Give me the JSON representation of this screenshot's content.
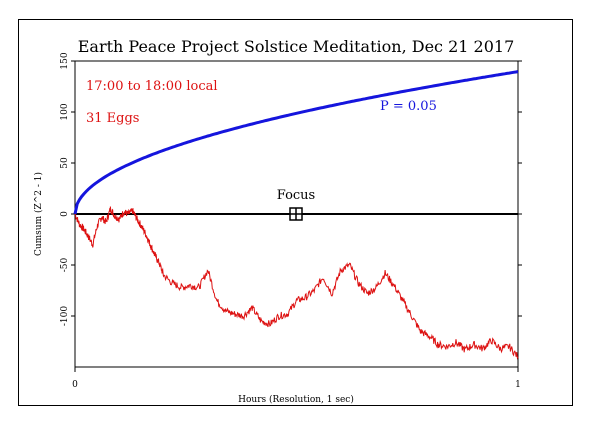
{
  "chart_data": {
    "type": "line",
    "title": "Earth Peace Project Solstice Meditation, Dec 21 2017",
    "xlabel": "Hours (Resolution, 1 sec)",
    "ylabel": "Cumsum (Z^2 - 1)",
    "xlim": [
      0,
      1
    ],
    "ylim": [
      -150,
      150
    ],
    "x_ticks": [
      "0",
      "1"
    ],
    "y_ticks": [
      "150",
      "100",
      "50",
      "0",
      "-50",
      "-100"
    ],
    "y_tick_values": [
      150,
      100,
      50,
      0,
      -50,
      -100
    ],
    "annotations": {
      "time_window": "17:00 to 18:00 local",
      "eggs": "31 Eggs",
      "p_label": "P = 0.05",
      "focus_label": "Focus"
    },
    "focus_point": {
      "x": 0.5,
      "y": 0
    },
    "colors": {
      "cumsum": "#dd1111",
      "p_curve": "#1515dd",
      "axis": "#000000",
      "baseline": "#000000"
    },
    "series": [
      {
        "label": "P = 0.05",
        "color": "#1515dd",
        "line_width": 3,
        "formula": "1.645*sqrt(2*t*3600)",
        "x": [
          0,
          0.01,
          0.02,
          0.04,
          0.06,
          0.1,
          0.15,
          0.2,
          0.3,
          0.4,
          0.5,
          0.6,
          0.7,
          0.8,
          0.9,
          1.0
        ],
        "y": [
          0,
          14,
          20,
          28,
          34,
          44,
          54,
          62,
          76,
          88,
          99,
          108,
          117,
          125,
          132,
          140
        ]
      },
      {
        "color": "#dd1111",
        "line_width": 1,
        "x": [
          0,
          0.01,
          0.02,
          0.03,
          0.04,
          0.05,
          0.06,
          0.07,
          0.08,
          0.09,
          0.1,
          0.11,
          0.12,
          0.13,
          0.14,
          0.15,
          0.16,
          0.17,
          0.18,
          0.19,
          0.2,
          0.22,
          0.24,
          0.26,
          0.28,
          0.3,
          0.32,
          0.34,
          0.36,
          0.38,
          0.4,
          0.42,
          0.44,
          0.46,
          0.48,
          0.5,
          0.52,
          0.54,
          0.56,
          0.58,
          0.6,
          0.62,
          0.64,
          0.66,
          0.68,
          0.7,
          0.72,
          0.74,
          0.76,
          0.78,
          0.8,
          0.82,
          0.84,
          0.86,
          0.88,
          0.9,
          0.92,
          0.94,
          0.96,
          0.98,
          1.0
        ],
        "y": [
          0,
          -10,
          -15,
          -22,
          -30,
          -12,
          -3,
          -8,
          5,
          -2,
          -5,
          2,
          0,
          3,
          -5,
          -12,
          -20,
          -30,
          -40,
          -48,
          -60,
          -68,
          -72,
          -70,
          -72,
          -55,
          -85,
          -95,
          -98,
          -100,
          -92,
          -105,
          -108,
          -100,
          -98,
          -85,
          -82,
          -75,
          -62,
          -78,
          -55,
          -50,
          -68,
          -78,
          -72,
          -58,
          -70,
          -85,
          -100,
          -115,
          -120,
          -128,
          -130,
          -126,
          -133,
          -128,
          -132,
          -124,
          -132,
          -130,
          -140
        ]
      }
    ]
  }
}
